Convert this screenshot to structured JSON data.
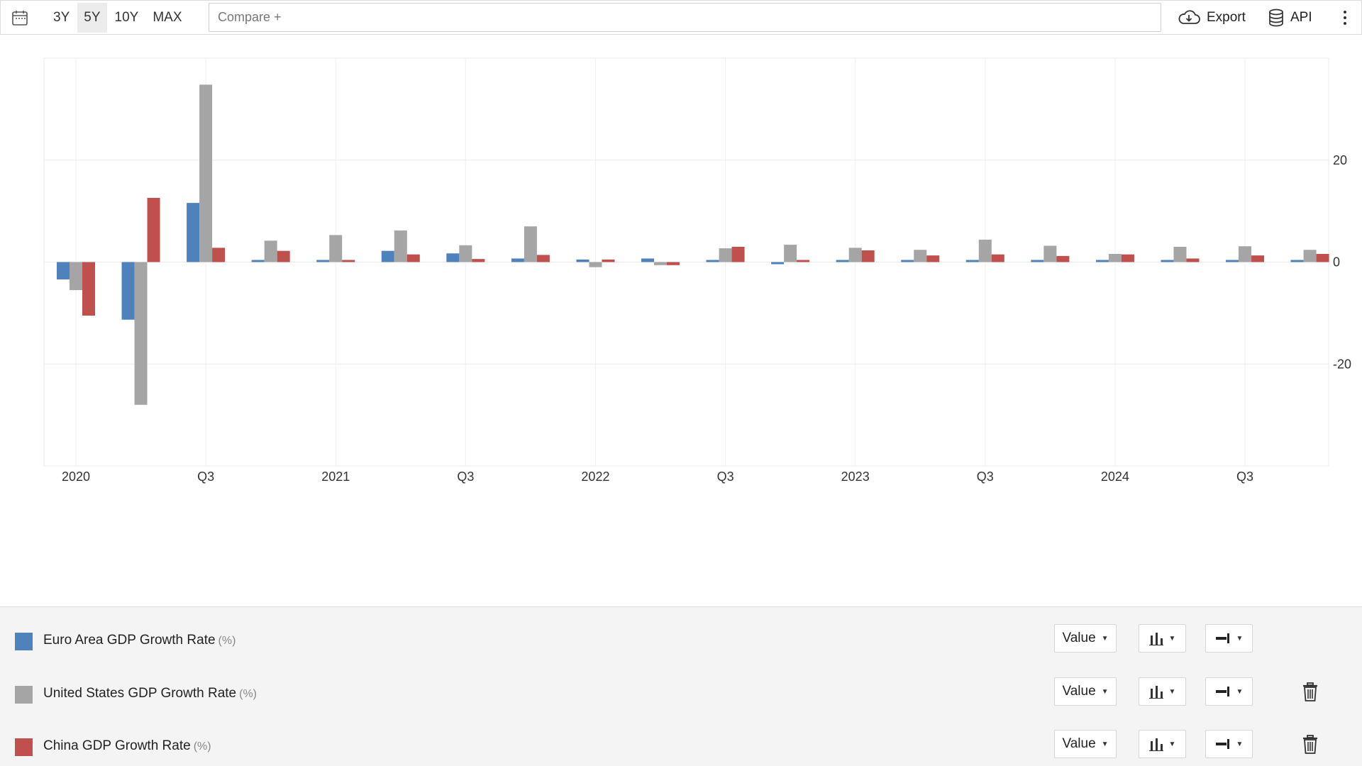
{
  "toolbar": {
    "calendar_icon": "calendar-icon",
    "ranges": [
      "3Y",
      "5Y",
      "10Y",
      "MAX"
    ],
    "active_range": "5Y",
    "compare_placeholder": "Compare +",
    "export_label": "Export",
    "api_label": "API",
    "export_icon": "cloud-download-icon",
    "api_icon": "database-icon",
    "more_icon": "kebab-menu-icon"
  },
  "chart_data": {
    "type": "bar",
    "title": "",
    "xlabel": "",
    "ylabel": "",
    "categories": [
      "2020 Q1",
      "2020 Q2",
      "2020 Q3",
      "2020 Q4",
      "2021 Q1",
      "2021 Q2",
      "2021 Q3",
      "2021 Q4",
      "2022 Q1",
      "2022 Q2",
      "2022 Q3",
      "2022 Q4",
      "2023 Q1",
      "2023 Q2",
      "2023 Q3",
      "2023 Q4",
      "2024 Q1",
      "2024 Q2",
      "2024 Q3",
      "2024 Q4"
    ],
    "x_tick_labels": [
      "2020",
      "",
      "Q3",
      "",
      "2021",
      "",
      "Q3",
      "",
      "2022",
      "",
      "Q3",
      "",
      "2023",
      "",
      "Q3",
      "",
      "2024",
      "",
      "Q3",
      ""
    ],
    "ylim": [
      -40,
      40
    ],
    "y_ticks": [
      20,
      0,
      -20
    ],
    "y_axis_position": "right",
    "grid": true,
    "series": [
      {
        "name": "Euro Area GDP Growth Rate",
        "color": "#4f81bd",
        "values": [
          -3.4,
          -11.3,
          11.6,
          0.4,
          0.3,
          2.2,
          1.7,
          0.7,
          0.5,
          0.7,
          0.4,
          -0.4,
          0.1,
          0.2,
          0.1,
          0.1,
          0.3,
          0.2,
          0.4,
          0.3
        ]
      },
      {
        "name": "United States GDP Growth Rate",
        "color": "#a5a5a5",
        "values": [
          -5.5,
          -28.0,
          34.8,
          4.2,
          5.3,
          6.2,
          3.3,
          7.0,
          -1.0,
          -0.6,
          2.7,
          3.4,
          2.8,
          2.4,
          4.4,
          3.2,
          1.6,
          3.0,
          3.1,
          2.4
        ]
      },
      {
        "name": "China GDP Growth Rate",
        "color": "#c0504d",
        "values": [
          -10.5,
          12.6,
          2.8,
          2.2,
          0.3,
          1.5,
          0.6,
          1.4,
          0.5,
          -0.6,
          3.0,
          0.4,
          2.3,
          1.3,
          1.5,
          1.2,
          1.5,
          0.7,
          1.3,
          1.6
        ]
      }
    ]
  },
  "legend": {
    "rows": [
      {
        "label": "Euro Area GDP Growth Rate",
        "unit": "(%)",
        "color": "#4f81bd",
        "value_select": "Value",
        "deletable": false
      },
      {
        "label": "United States GDP Growth Rate",
        "unit": "(%)",
        "color": "#a5a5a5",
        "value_select": "Value",
        "deletable": true
      },
      {
        "label": "China GDP Growth Rate",
        "unit": "(%)",
        "color": "#c0504d",
        "value_select": "Value",
        "deletable": true
      }
    ],
    "chart_type_icon": "bar-chart-icon",
    "axis_icon": "axis-side-icon",
    "delete_icon": "trash-icon"
  }
}
